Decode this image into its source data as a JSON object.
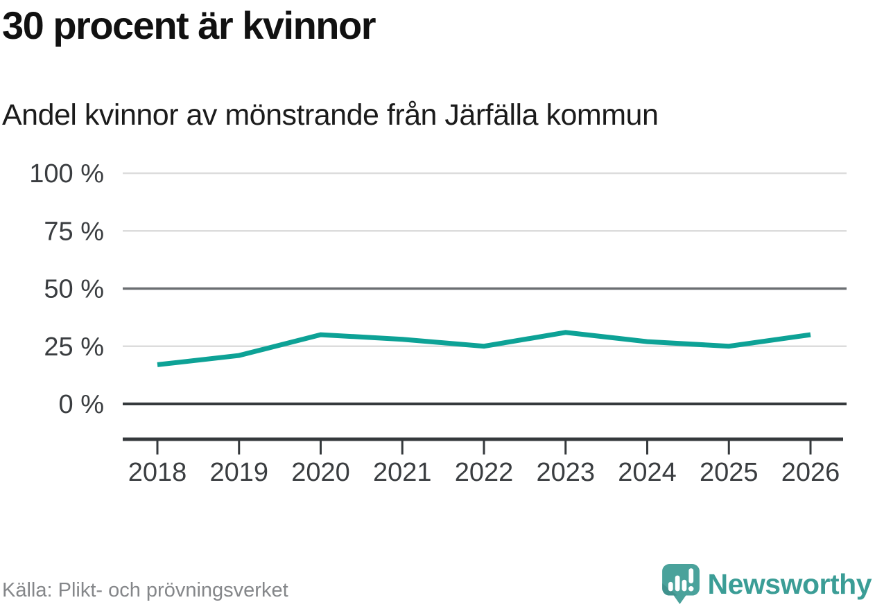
{
  "header": {
    "title": "30 procent är kvinnor",
    "subtitle": "Andel kvinnor av mönstrande från Järfälla kommun"
  },
  "chart_data": {
    "type": "line",
    "title": "30 procent är kvinnor",
    "subtitle": "Andel kvinnor av mönstrande från Järfälla kommun",
    "categories": [
      "2018",
      "2019",
      "2020",
      "2021",
      "2022",
      "2023",
      "2024",
      "2025",
      "2026"
    ],
    "series": [
      {
        "name": "Andel kvinnor av mönstrande",
        "values": [
          17,
          21,
          30,
          28,
          25,
          31,
          27,
          25,
          30
        ]
      }
    ],
    "unit": "%",
    "ylim": [
      0,
      100
    ],
    "yticks": [
      0,
      25,
      50,
      75,
      100
    ],
    "ytick_labels": [
      "0 %",
      "25 %",
      "50 %",
      "75 %",
      "100 %"
    ],
    "reference_line": 50,
    "xlabel": "",
    "ylabel": "",
    "legend": "none",
    "grid": "horizontal",
    "colors": {
      "line": "#0da296",
      "grid": "#dcdcdc",
      "reference_line": "#6b6f72",
      "axis": "#35393c",
      "tick_text": "#3a3d40"
    }
  },
  "footer": {
    "source": "Källa: Plikt- och prövningsverket",
    "brand": "Newsworthy",
    "brand_color": "#3b9d96",
    "logo_icon": "newsworthy-speech-bubble-bar-chart-exclamation"
  }
}
